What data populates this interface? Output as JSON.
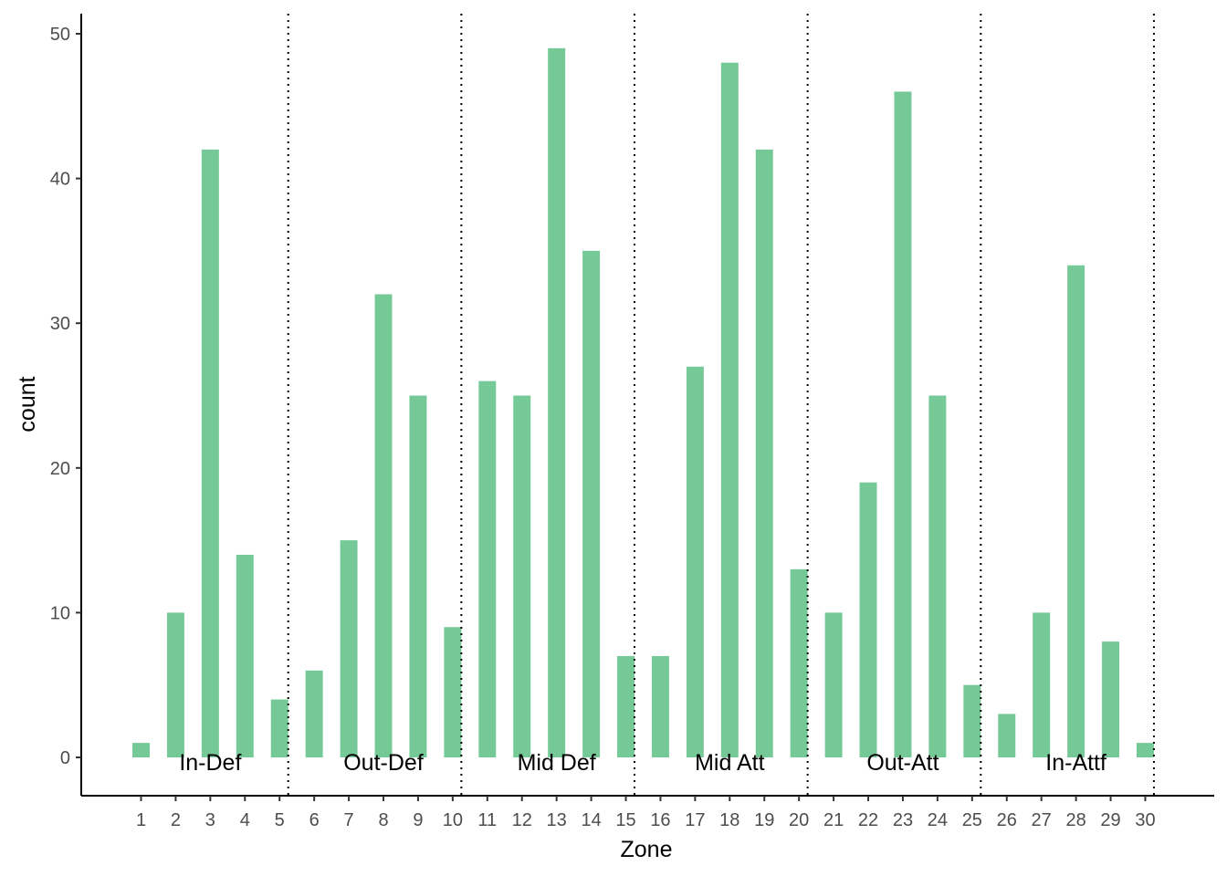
{
  "chart_data": {
    "type": "bar",
    "title": "",
    "xlabel": "Zone",
    "ylabel": "count",
    "ylim": [
      -2.7,
      51.2
    ],
    "yticks": [
      0,
      10,
      20,
      30,
      40,
      50
    ],
    "categories": [
      "1",
      "2",
      "3",
      "4",
      "5",
      "6",
      "7",
      "8",
      "9",
      "10",
      "11",
      "12",
      "13",
      "14",
      "15",
      "16",
      "17",
      "18",
      "19",
      "20",
      "21",
      "22",
      "23",
      "24",
      "25",
      "26",
      "27",
      "28",
      "29",
      "30"
    ],
    "values": [
      1,
      10,
      42,
      14,
      4,
      6,
      15,
      32,
      25,
      9,
      26,
      25,
      49,
      35,
      7,
      7,
      27,
      48,
      42,
      13,
      10,
      19,
      46,
      25,
      5,
      3,
      10,
      34,
      8,
      1
    ],
    "bar_color": "#74C997",
    "grid": false,
    "annotations": {
      "region_labels": [
        {
          "text": "In-Def",
          "x": 3
        },
        {
          "text": "Out-Def",
          "x": 8
        },
        {
          "text": "Mid Def",
          "x": 13
        },
        {
          "text": "Mid Att",
          "x": 18
        },
        {
          "text": "Out-Att",
          "x": 23
        },
        {
          "text": "In-Attf",
          "x": 28
        }
      ],
      "dividers": [
        5.25,
        10.25,
        15.25,
        20.25,
        25.25,
        30.25
      ],
      "divider_style": "dotted"
    }
  }
}
